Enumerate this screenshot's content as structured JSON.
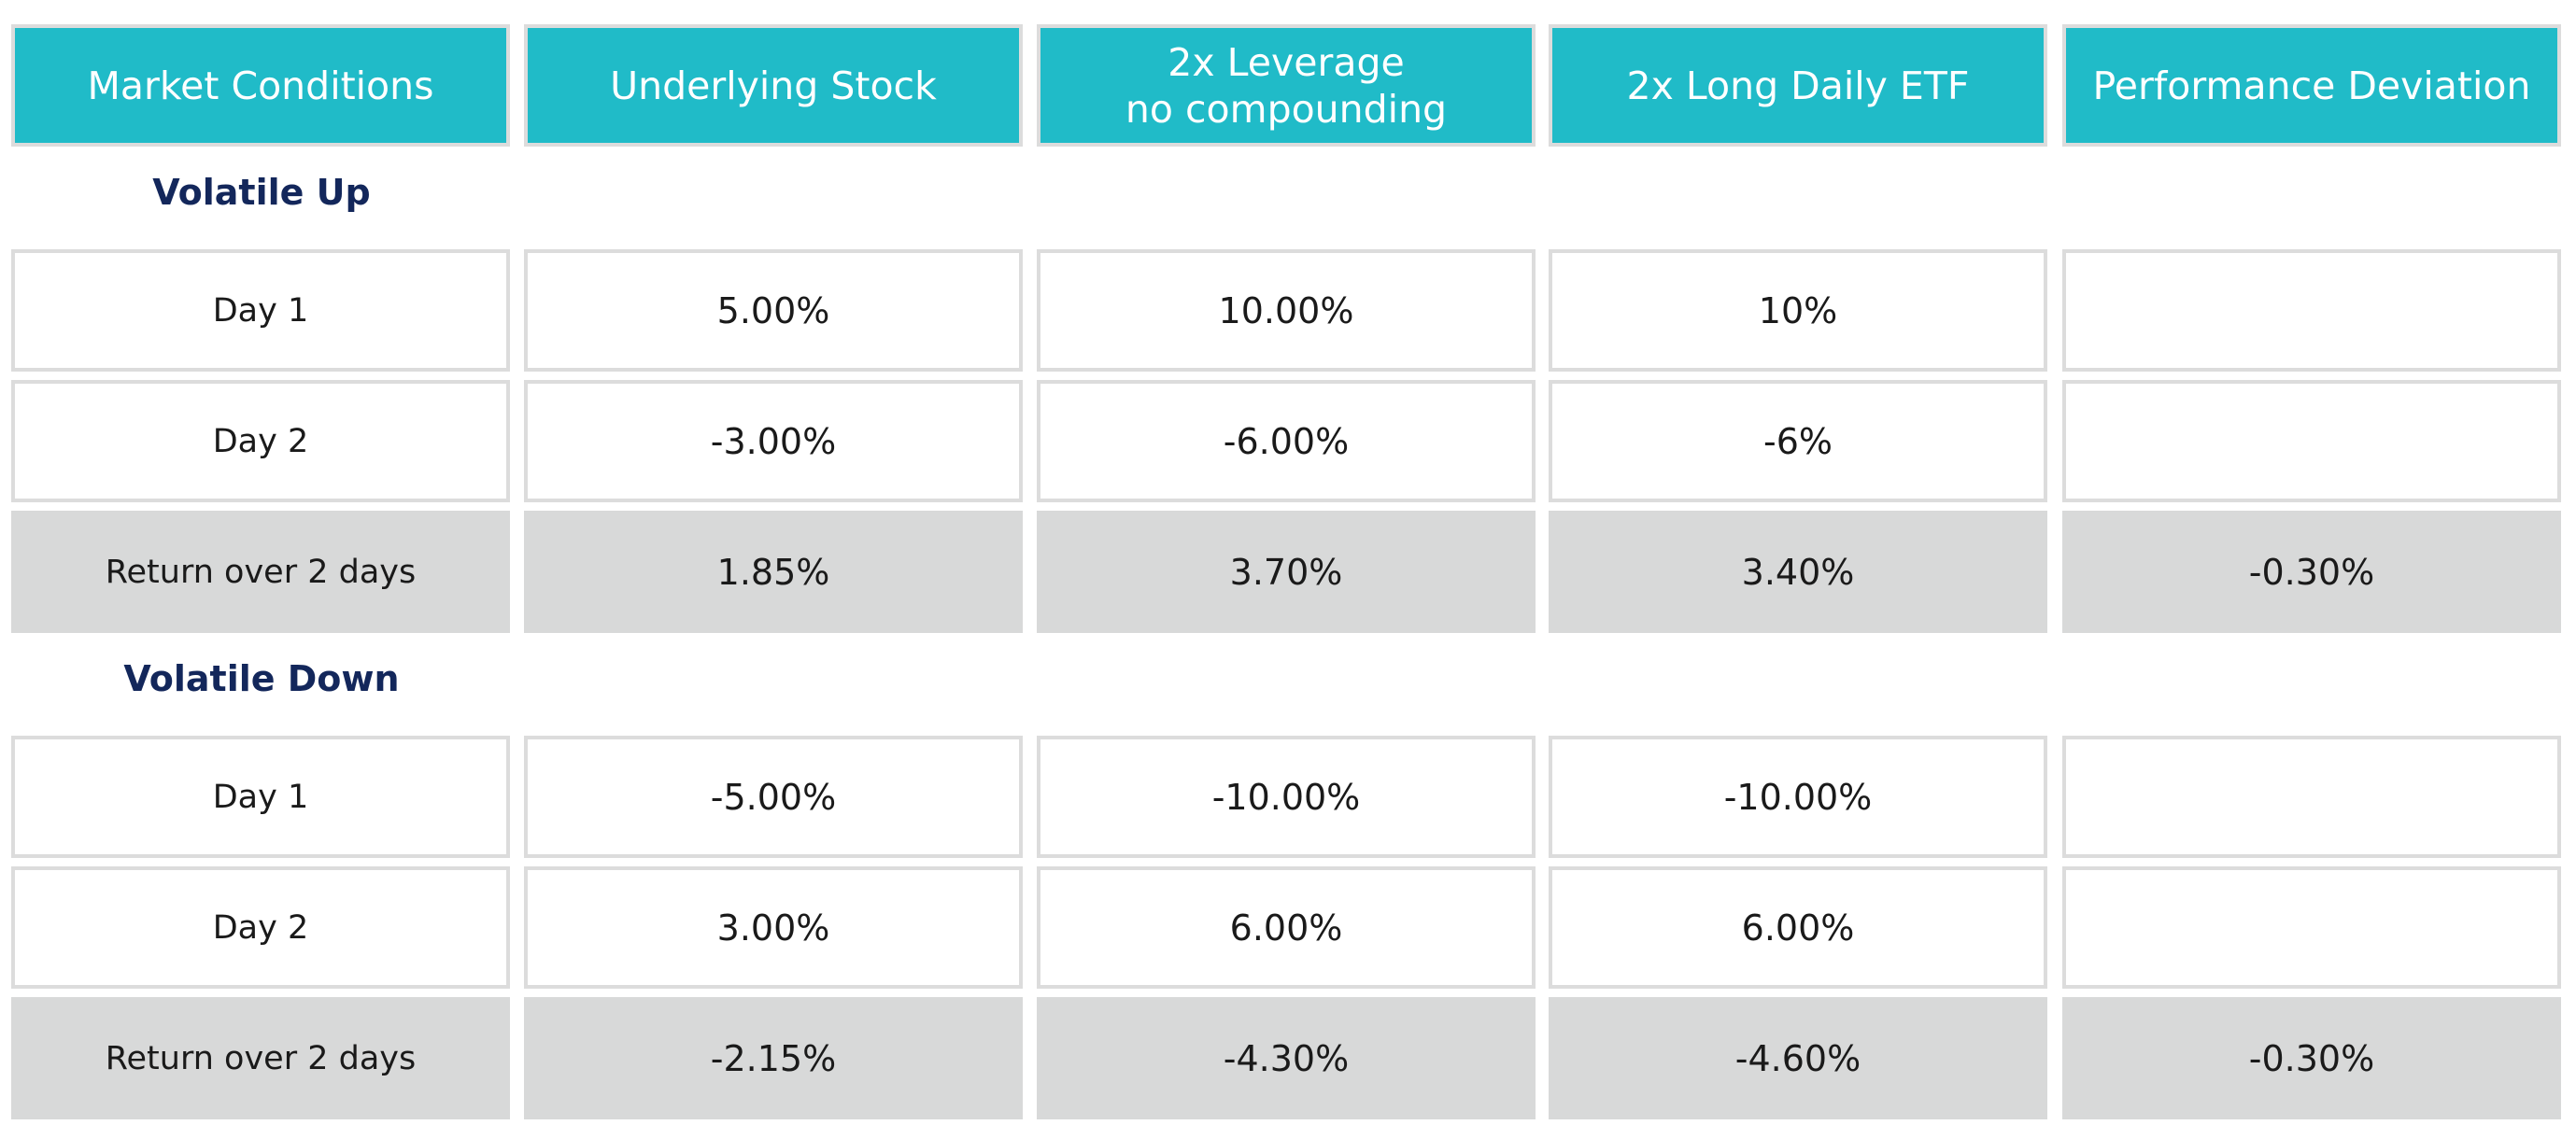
{
  "headers": [
    "Market Conditions",
    "Underlying Stock",
    "2x Leverage\nno compounding",
    "2x Long Daily ETF",
    "Performance Deviation"
  ],
  "sections": [
    {
      "title": "Volatile Up",
      "rows": [
        {
          "label": "Day 1",
          "values": [
            "5.00%",
            "10.00%",
            "10%",
            ""
          ]
        },
        {
          "label": "Day 2",
          "values": [
            "-3.00%",
            "-6.00%",
            "-6%",
            ""
          ]
        },
        {
          "label": "Return over 2 days",
          "values": [
            "1.85%",
            "3.70%",
            "3.40%",
            "-0.30%"
          ]
        }
      ]
    },
    {
      "title": "Volatile Down",
      "rows": [
        {
          "label": "Day 1",
          "values": [
            "-5.00%",
            "-10.00%",
            "-10.00%",
            ""
          ]
        },
        {
          "label": "Day 2",
          "values": [
            "3.00%",
            "6.00%",
            "6.00%",
            ""
          ]
        },
        {
          "label": "Return over 2 days",
          "values": [
            "-2.15%",
            "-4.30%",
            "-4.60%",
            "-0.30%"
          ]
        }
      ]
    }
  ],
  "colors": {
    "header_bg": "#20bbc8",
    "header_text": "#ffffff",
    "section_title": "#13275b",
    "summary_bg": "#d8d9d9",
    "border": "#dcdcdc"
  }
}
